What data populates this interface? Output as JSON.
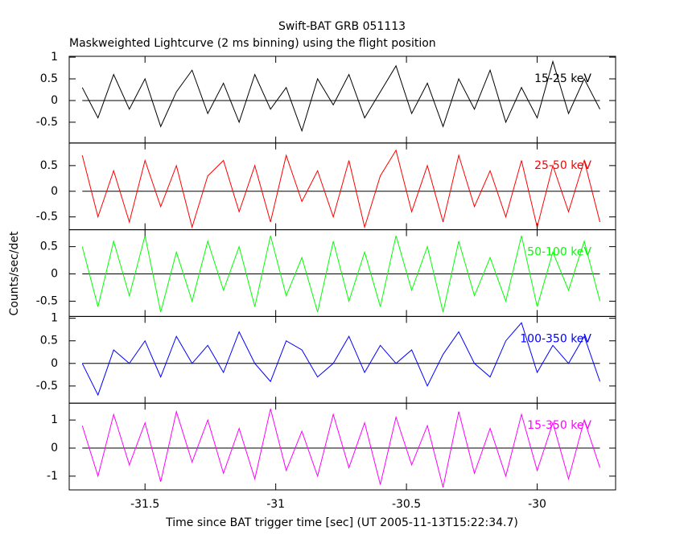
{
  "chart_data": [
    {
      "type": "line",
      "title": "Swift-BAT GRB 051113",
      "subtitle": "Maskweighted Lightcurve (2 ms binning) using the flight position",
      "ylabel": "Counts/sec/det",
      "label": "15-25 keV",
      "color": "#000000",
      "xlim": [
        -31.79,
        -29.7
      ],
      "xticks": [
        -31.5,
        -31,
        -30.5,
        -30
      ],
      "ylim": [
        -0.98,
        1.02
      ],
      "yticks": [
        -0.5,
        0,
        0.5,
        1
      ],
      "x": [
        -31.74,
        -31.68,
        -31.62,
        -31.56,
        -31.5,
        -31.44,
        -31.38,
        -31.32,
        -31.26,
        -31.2,
        -31.14,
        -31.08,
        -31.02,
        -30.96,
        -30.9,
        -30.84,
        -30.78,
        -30.72,
        -30.66,
        -30.6,
        -30.54,
        -30.48,
        -30.42,
        -30.36,
        -30.3,
        -30.24,
        -30.18,
        -30.12,
        -30.06,
        -30,
        -29.94,
        -29.88,
        -29.82,
        -29.76
      ],
      "values": [
        0.3,
        -0.4,
        0.6,
        -0.2,
        0.5,
        -0.6,
        0.2,
        0.7,
        -0.3,
        0.4,
        -0.5,
        0.6,
        -0.2,
        0.3,
        -0.7,
        0.5,
        -0.1,
        0.6,
        -0.4,
        0.2,
        0.8,
        -0.3,
        0.4,
        -0.6,
        0.5,
        -0.2,
        0.7,
        -0.5,
        0.3,
        -0.4,
        0.9,
        -0.3,
        0.5,
        -0.2
      ]
    },
    {
      "type": "line",
      "label": "25-50 keV",
      "color": "#ff0000",
      "xlim": [
        -31.79,
        -29.7
      ],
      "xticks": [
        -31.5,
        -31,
        -30.5,
        -30
      ],
      "ylim": [
        -0.75,
        0.94
      ],
      "yticks": [
        -0.5,
        0,
        0.5
      ],
      "x": [
        -31.74,
        -31.68,
        -31.62,
        -31.56,
        -31.5,
        -31.44,
        -31.38,
        -31.32,
        -31.26,
        -31.2,
        -31.14,
        -31.08,
        -31.02,
        -30.96,
        -30.9,
        -30.84,
        -30.78,
        -30.72,
        -30.66,
        -30.6,
        -30.54,
        -30.48,
        -30.42,
        -30.36,
        -30.3,
        -30.24,
        -30.18,
        -30.12,
        -30.06,
        -30,
        -29.94,
        -29.88,
        -29.82,
        -29.76
      ],
      "values": [
        0.7,
        -0.5,
        0.4,
        -0.6,
        0.6,
        -0.3,
        0.5,
        -0.7,
        0.3,
        0.6,
        -0.4,
        0.5,
        -0.6,
        0.7,
        -0.2,
        0.4,
        -0.5,
        0.6,
        -0.7,
        0.3,
        0.8,
        -0.4,
        0.5,
        -0.6,
        0.7,
        -0.3,
        0.4,
        -0.5,
        0.6,
        -0.7,
        0.5,
        -0.4,
        0.6,
        -0.6
      ]
    },
    {
      "type": "line",
      "label": "50-100 keV",
      "color": "#00ff00",
      "xlim": [
        -31.79,
        -29.7
      ],
      "xticks": [
        -31.5,
        -31,
        -30.5,
        -30
      ],
      "ylim": [
        -0.78,
        0.81
      ],
      "yticks": [
        -0.5,
        0,
        0.5
      ],
      "x": [
        -31.74,
        -31.68,
        -31.62,
        -31.56,
        -31.5,
        -31.44,
        -31.38,
        -31.32,
        -31.26,
        -31.2,
        -31.14,
        -31.08,
        -31.02,
        -30.96,
        -30.9,
        -30.84,
        -30.78,
        -30.72,
        -30.66,
        -30.6,
        -30.54,
        -30.48,
        -30.42,
        -30.36,
        -30.3,
        -30.24,
        -30.18,
        -30.12,
        -30.06,
        -30,
        -29.94,
        -29.88,
        -29.82,
        -29.76
      ],
      "values": [
        0.5,
        -0.6,
        0.6,
        -0.4,
        0.7,
        -0.7,
        0.4,
        -0.5,
        0.6,
        -0.3,
        0.5,
        -0.6,
        0.7,
        -0.4,
        0.3,
        -0.7,
        0.6,
        -0.5,
        0.4,
        -0.6,
        0.7,
        -0.3,
        0.5,
        -0.7,
        0.6,
        -0.4,
        0.3,
        -0.5,
        0.7,
        -0.6,
        0.4,
        -0.3,
        0.6,
        -0.5
      ]
    },
    {
      "type": "line",
      "label": "100-350 keV",
      "color": "#0000ff",
      "xlim": [
        -31.79,
        -29.7
      ],
      "xticks": [
        -31.5,
        -31,
        -30.5,
        -30
      ],
      "ylim": [
        -0.88,
        1.04
      ],
      "yticks": [
        -0.5,
        0,
        0.5,
        1
      ],
      "x": [
        -31.74,
        -31.68,
        -31.62,
        -31.56,
        -31.5,
        -31.44,
        -31.38,
        -31.32,
        -31.26,
        -31.2,
        -31.14,
        -31.08,
        -31.02,
        -30.96,
        -30.9,
        -30.84,
        -30.78,
        -30.72,
        -30.66,
        -30.6,
        -30.54,
        -30.48,
        -30.42,
        -30.36,
        -30.3,
        -30.24,
        -30.18,
        -30.12,
        -30.06,
        -30,
        -29.94,
        -29.88,
        -29.82,
        -29.76
      ],
      "values": [
        0,
        -0.7,
        0.3,
        0,
        0.5,
        -0.3,
        0.6,
        0,
        0.4,
        -0.2,
        0.7,
        0,
        -0.4,
        0.5,
        0.3,
        -0.3,
        0,
        0.6,
        -0.2,
        0.4,
        0,
        0.3,
        -0.5,
        0.2,
        0.7,
        0,
        -0.3,
        0.5,
        0.9,
        -0.2,
        0.4,
        0,
        0.6,
        -0.4
      ]
    },
    {
      "type": "line",
      "label": "15-350 keV",
      "color": "#ff00ff",
      "xlabel": "Time since BAT trigger time [sec] (UT 2005-11-13T15:22:34.7)",
      "xlim": [
        -31.79,
        -29.7
      ],
      "xticks": [
        -31.5,
        -31,
        -30.5,
        -30
      ],
      "ylim": [
        -1.49,
        1.6
      ],
      "yticks": [
        -1,
        0,
        1
      ],
      "x": [
        -31.74,
        -31.68,
        -31.62,
        -31.56,
        -31.5,
        -31.44,
        -31.38,
        -31.32,
        -31.26,
        -31.2,
        -31.14,
        -31.08,
        -31.02,
        -30.96,
        -30.9,
        -30.84,
        -30.78,
        -30.72,
        -30.66,
        -30.6,
        -30.54,
        -30.48,
        -30.42,
        -30.36,
        -30.3,
        -30.24,
        -30.18,
        -30.12,
        -30.06,
        -30,
        -29.94,
        -29.88,
        -29.82,
        -29.76
      ],
      "values": [
        0.8,
        -1,
        1.2,
        -0.6,
        0.9,
        -1.2,
        1.3,
        -0.5,
        1,
        -0.9,
        0.7,
        -1.1,
        1.4,
        -0.8,
        0.6,
        -1,
        1.2,
        -0.7,
        0.9,
        -1.3,
        1.1,
        -0.6,
        0.8,
        -1.4,
        1.3,
        -0.9,
        0.7,
        -1,
        1.2,
        -0.8,
        0.9,
        -1.1,
        1,
        -0.7
      ]
    }
  ]
}
